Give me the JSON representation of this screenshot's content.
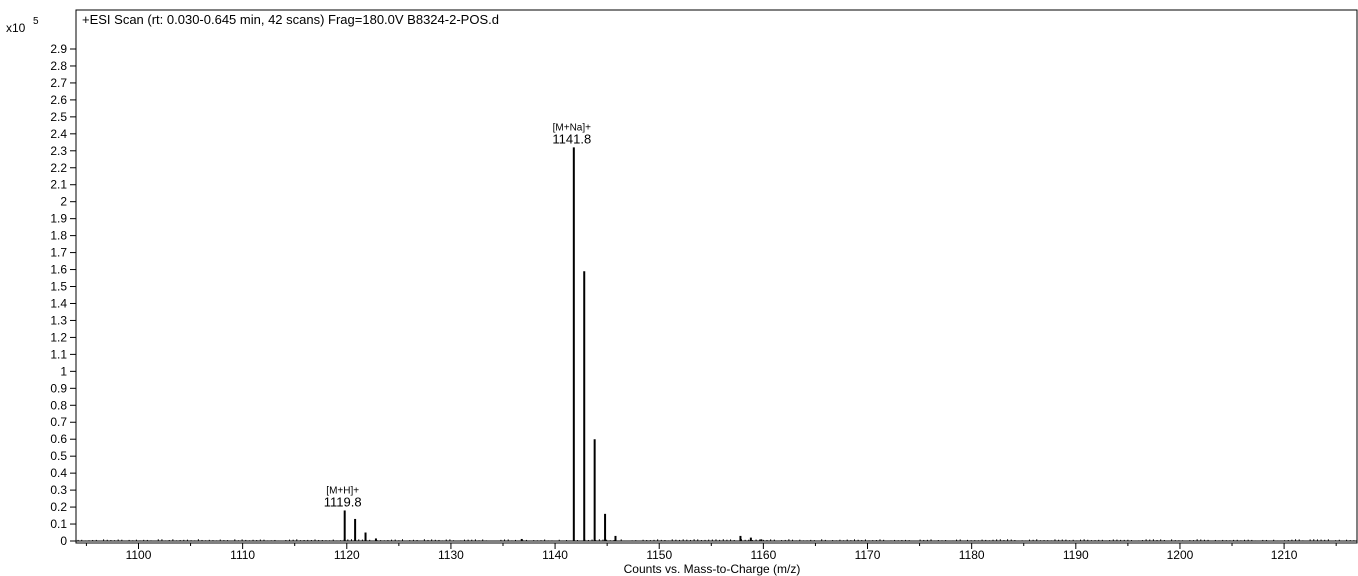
{
  "chart_data": {
    "type": "bar",
    "title": "+ESI Scan (rt: 0.030-0.645 min, 42 scans) Frag=180.0V B8324-2-POS.d",
    "xlabel": "Counts vs. Mass-to-Charge (m/z)",
    "ylabel": "",
    "y_multiplier": {
      "base": "x10",
      "exponent": "5"
    },
    "xlim": [
      1094,
      1217
    ],
    "ylim": [
      0,
      3.0
    ],
    "x_ticks": [
      1100,
      1110,
      1120,
      1130,
      1140,
      1150,
      1160,
      1170,
      1180,
      1190,
      1200,
      1210
    ],
    "y_ticks": [
      0,
      0.1,
      0.2,
      0.3,
      0.4,
      0.5,
      0.6,
      0.7,
      0.8,
      0.9,
      1,
      1.1,
      1.2,
      1.3,
      1.4,
      1.5,
      1.6,
      1.7,
      1.8,
      1.9,
      2,
      2.1,
      2.2,
      2.3,
      2.4,
      2.5,
      2.6,
      2.7,
      2.8,
      2.9
    ],
    "peaks": [
      {
        "x": 1119.8,
        "y": 0.18
      },
      {
        "x": 1120.8,
        "y": 0.13
      },
      {
        "x": 1121.8,
        "y": 0.05
      },
      {
        "x": 1122.8,
        "y": 0.015
      },
      {
        "x": 1136.8,
        "y": 0.012
      },
      {
        "x": 1141.8,
        "y": 2.32
      },
      {
        "x": 1142.8,
        "y": 1.59
      },
      {
        "x": 1143.8,
        "y": 0.6
      },
      {
        "x": 1144.8,
        "y": 0.16
      },
      {
        "x": 1145.8,
        "y": 0.03
      },
      {
        "x": 1157.8,
        "y": 0.03
      },
      {
        "x": 1158.8,
        "y": 0.02
      },
      {
        "x": 1159.8,
        "y": 0.01
      }
    ],
    "annotations": [
      {
        "x": 1119.8,
        "y": 0.18,
        "ion": "[M+H]+",
        "mz": "1119.8"
      },
      {
        "x": 1141.8,
        "y": 2.32,
        "ion": "[M+Na]+",
        "mz": "1141.8"
      }
    ],
    "grid": false,
    "legend": "none"
  }
}
